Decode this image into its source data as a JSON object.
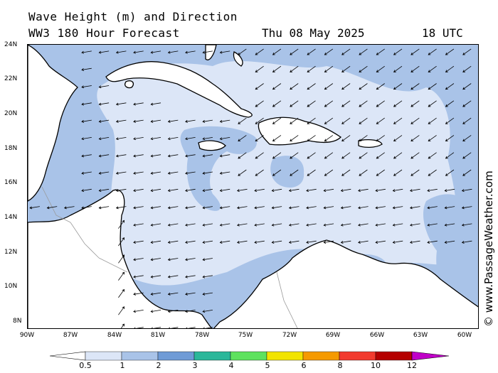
{
  "title_line1": "Wave Height (m) and Direction",
  "title_line2": "WW3 180 Hour Forecast",
  "forecast_date": "Thu 08 May 2025",
  "forecast_time": "18 UTC",
  "credit": "© www.PassageWeather.com",
  "lat_labels": [
    "24N",
    "22N",
    "20N",
    "18N",
    "16N",
    "14N",
    "12N",
    "10N",
    "8N"
  ],
  "lon_labels": [
    "90W",
    "87W",
    "84W",
    "81W",
    "78W",
    "75W",
    "72W",
    "69W",
    "66W",
    "63W",
    "60W"
  ],
  "legend": {
    "labels": [
      "0.5",
      "1",
      "2",
      "3",
      "4",
      "5",
      "6",
      "8",
      "10",
      "12"
    ],
    "colors": [
      "#dce6f7",
      "#a9c3e8",
      "#6f9bd6",
      "#2bb79a",
      "#5ee25e",
      "#f2e400",
      "#f59a00",
      "#f23a2e",
      "#b50000",
      "#c000c8"
    ]
  },
  "colors": {
    "land": "#ffffff",
    "wave_0_5_1": "#dce6f7",
    "wave_1_2": "#a9c3e8",
    "coast": "#000000",
    "border": "#9a9a9a"
  },
  "arrow_icon": "wave-direction-arrow",
  "map_region": {
    "lon_min": -90,
    "lon_max": -59,
    "lat_min": 7.5,
    "lat_max": 24
  }
}
